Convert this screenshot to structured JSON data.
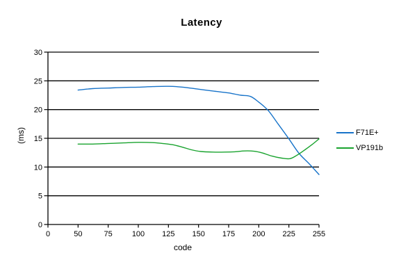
{
  "chart": {
    "title": "Latency",
    "x_axis_label": "code",
    "y_axis_label": "(ms)"
  },
  "colors": {
    "background": "#ffffff",
    "axis": "#000000",
    "series_f71e": "#1773c9",
    "series_vp191b": "#19a32e"
  },
  "chart_data": {
    "type": "line",
    "title": "Latency",
    "xlabel": "code",
    "ylabel": "(ms)",
    "x_tick_codes": [
      0,
      50,
      75,
      100,
      125,
      150,
      175,
      200,
      225,
      255
    ],
    "x_tick_labels": [
      "0",
      "50",
      "75",
      "100",
      "125",
      "150",
      "175",
      "200",
      "225",
      "255"
    ],
    "x_ticks_evenly_spaced": true,
    "y_ticks": [
      0,
      5,
      10,
      15,
      20,
      25,
      30
    ],
    "ylim": [
      0,
      30
    ],
    "grid": "horizontal-only",
    "legend_position": "right-middle",
    "series": [
      {
        "name": "F71E+",
        "color": "#1773c9",
        "points": [
          [
            50,
            23.4
          ],
          [
            62,
            23.65
          ],
          [
            75,
            23.75
          ],
          [
            88,
            23.85
          ],
          [
            100,
            23.9
          ],
          [
            112,
            24.0
          ],
          [
            125,
            24.05
          ],
          [
            137,
            23.9
          ],
          [
            150,
            23.55
          ],
          [
            163,
            23.2
          ],
          [
            175,
            22.9
          ],
          [
            185,
            22.5
          ],
          [
            193,
            22.3
          ],
          [
            200,
            21.3
          ],
          [
            208,
            19.8
          ],
          [
            216,
            17.5
          ],
          [
            225,
            14.9
          ],
          [
            235,
            12.4
          ],
          [
            245,
            10.6
          ],
          [
            255,
            8.7
          ]
        ]
      },
      {
        "name": "VP191b",
        "color": "#19a32e",
        "points": [
          [
            50,
            14.0
          ],
          [
            62,
            14.0
          ],
          [
            75,
            14.1
          ],
          [
            88,
            14.2
          ],
          [
            100,
            14.3
          ],
          [
            112,
            14.25
          ],
          [
            120,
            14.1
          ],
          [
            128,
            13.9
          ],
          [
            136,
            13.5
          ],
          [
            144,
            13.0
          ],
          [
            152,
            12.7
          ],
          [
            162,
            12.6
          ],
          [
            172,
            12.6
          ],
          [
            180,
            12.65
          ],
          [
            188,
            12.8
          ],
          [
            196,
            12.75
          ],
          [
            203,
            12.45
          ],
          [
            211,
            11.9
          ],
          [
            219,
            11.55
          ],
          [
            226,
            11.45
          ],
          [
            233,
            12.05
          ],
          [
            241,
            13.0
          ],
          [
            248,
            13.9
          ],
          [
            255,
            14.9
          ]
        ]
      }
    ]
  }
}
